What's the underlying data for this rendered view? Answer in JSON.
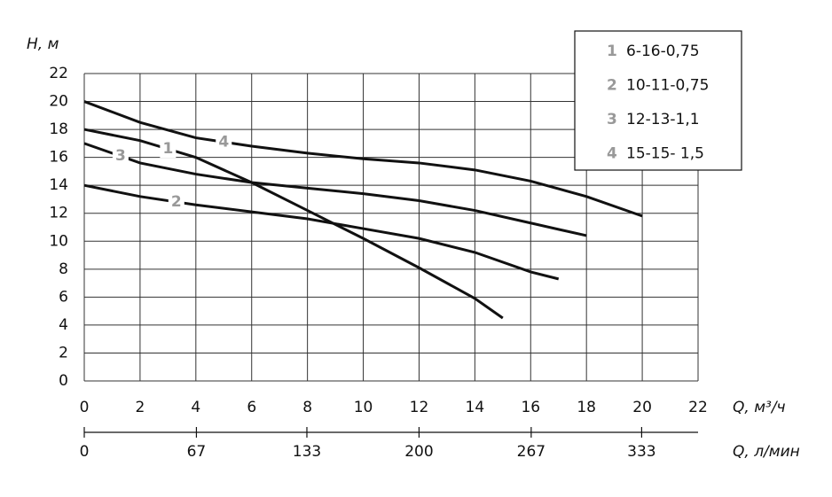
{
  "chart_data": {
    "type": "line",
    "y_label": "H, м",
    "x_label": "Q, м³/ч",
    "x2_label": "Q, л/мин",
    "xlim": [
      0,
      22
    ],
    "xticks": [
      0,
      2,
      4,
      6,
      8,
      10,
      12,
      14,
      16,
      18,
      20,
      22
    ],
    "ylim": [
      0,
      22
    ],
    "yticks": [
      0,
      2,
      4,
      6,
      8,
      10,
      12,
      14,
      16,
      18,
      20,
      22
    ],
    "x2lim": [
      0,
      366.7
    ],
    "x2ticks": [
      0,
      67,
      133,
      200,
      267,
      333
    ],
    "grid": true,
    "legend": "upper right",
    "series": [
      {
        "label": "1",
        "name": "6-16-0,75",
        "color": "#111111",
        "x": [
          0,
          2,
          4,
          6,
          8,
          10,
          12,
          14,
          15
        ],
        "values": [
          18,
          17.2,
          16,
          14.2,
          12.2,
          10.2,
          8.1,
          5.9,
          4.5
        ]
      },
      {
        "label": "2",
        "name": "10-11-0,75",
        "color": "#111111",
        "x": [
          0,
          2,
          4,
          6,
          8,
          10,
          12,
          14,
          16,
          17
        ],
        "values": [
          14,
          13.2,
          12.6,
          12.1,
          11.6,
          10.9,
          10.2,
          9.2,
          7.8,
          7.3
        ]
      },
      {
        "label": "3",
        "name": "12-13-1,1",
        "color": "#111111",
        "x": [
          0,
          2,
          4,
          6,
          8,
          10,
          12,
          14,
          16,
          18
        ],
        "values": [
          17,
          15.6,
          14.8,
          14.2,
          13.8,
          13.4,
          12.9,
          12.2,
          11.3,
          10.4
        ]
      },
      {
        "label": "4",
        "name": "15-15- 1,5",
        "color": "#111111",
        "x": [
          0,
          2,
          4,
          6,
          8,
          10,
          12,
          14,
          16,
          18,
          20
        ],
        "values": [
          20,
          18.5,
          17.4,
          16.8,
          16.3,
          15.9,
          15.6,
          15.1,
          14.3,
          13.2,
          11.8
        ]
      }
    ]
  }
}
